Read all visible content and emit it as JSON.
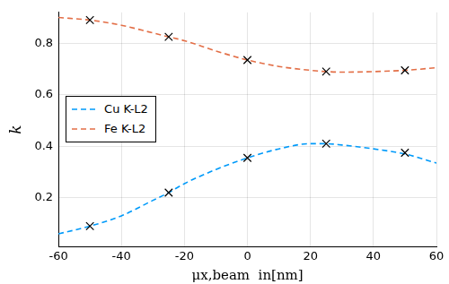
{
  "chart_data": {
    "type": "line",
    "xlabel": "μx,beam  in[nm]",
    "ylabel": "k",
    "xlim": [
      -60,
      60
    ],
    "xticks": [
      -60,
      -40,
      -20,
      0,
      20,
      40,
      60
    ],
    "ylim": [
      0.01,
      0.92
    ],
    "yticks": [
      0.2,
      0.4,
      0.6,
      0.8
    ],
    "grid": true,
    "legend": "left",
    "series": [
      {
        "name": "Cu K-L2",
        "color": "#009afa",
        "line_style": "dashed",
        "marker": "none",
        "x": [
          -60,
          -50,
          -40,
          -30,
          -25,
          -20,
          -10,
          0,
          10,
          20,
          25,
          30,
          40,
          50,
          60
        ],
        "values": [
          0.06,
          0.09,
          0.13,
          0.19,
          0.22,
          0.255,
          0.31,
          0.355,
          0.39,
          0.41,
          0.41,
          0.405,
          0.39,
          0.37,
          0.335
        ]
      },
      {
        "name": "Fe K-L2",
        "color": "#e36f47",
        "line_style": "dashed",
        "marker": "none",
        "x": [
          -60,
          -50,
          -40,
          -30,
          -25,
          -20,
          -10,
          0,
          10,
          20,
          25,
          30,
          40,
          50,
          60
        ],
        "values": [
          0.9,
          0.89,
          0.87,
          0.84,
          0.825,
          0.81,
          0.77,
          0.735,
          0.71,
          0.695,
          0.69,
          0.688,
          0.69,
          0.695,
          0.705
        ]
      },
      {
        "type": "scatter",
        "color": "#000000",
        "marker": "x",
        "x": [
          -50,
          -25,
          0,
          25,
          50
        ],
        "values": [
          0.09,
          0.22,
          0.355,
          0.41,
          0.375
        ]
      },
      {
        "type": "scatter",
        "color": "#000000",
        "marker": "x",
        "x": [
          -50,
          -25,
          0,
          25,
          50
        ],
        "values": [
          0.89,
          0.825,
          0.735,
          0.69,
          0.695
        ]
      }
    ]
  }
}
